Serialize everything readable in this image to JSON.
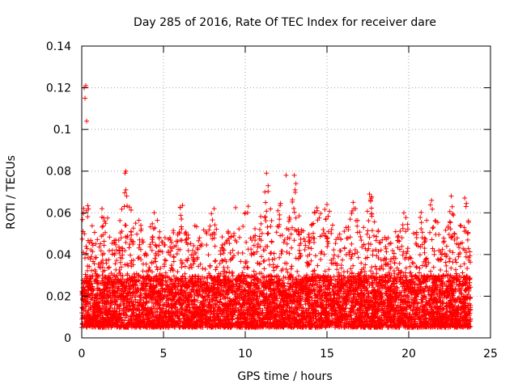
{
  "chart_data": {
    "type": "scatter",
    "title": "Day 285 of 2016, Rate Of TEC Index for receiver dare",
    "xlabel": "GPS time / hours",
    "ylabel": "ROTI / TECUs",
    "xlim": [
      0,
      25
    ],
    "ylim": [
      0,
      0.14
    ],
    "xticks": [
      0,
      5,
      10,
      15,
      20,
      25
    ],
    "xtick_labels": [
      "0",
      "5",
      "10",
      "15",
      "20",
      "25"
    ],
    "yticks": [
      0,
      0.02,
      0.04,
      0.06,
      0.08,
      0.1,
      0.12,
      0.14
    ],
    "ytick_labels": [
      "0",
      "0.02",
      "0.04",
      "0.06",
      "0.08",
      "0.1",
      "0.12",
      "0.14"
    ],
    "grid": true,
    "marker": "+",
    "series": [
      {
        "name": "ROTI",
        "color": "#ff0000",
        "x_range": [
          0,
          23.8
        ],
        "dense_band": [
          0.005,
          0.03
        ],
        "notable_points": [
          {
            "x": 0.15,
            "y": 0.12
          },
          {
            "x": 0.25,
            "y": 0.121
          },
          {
            "x": 0.2,
            "y": 0.115
          },
          {
            "x": 0.3,
            "y": 0.104
          },
          {
            "x": 0.3,
            "y": 0.061
          },
          {
            "x": 2.7,
            "y": 0.08
          },
          {
            "x": 2.65,
            "y": 0.079
          },
          {
            "x": 2.7,
            "y": 0.071
          },
          {
            "x": 2.75,
            "y": 0.068
          },
          {
            "x": 2.6,
            "y": 0.063
          },
          {
            "x": 11.3,
            "y": 0.079
          },
          {
            "x": 11.4,
            "y": 0.073
          },
          {
            "x": 11.2,
            "y": 0.07
          },
          {
            "x": 12.5,
            "y": 0.078
          },
          {
            "x": 13.0,
            "y": 0.078
          },
          {
            "x": 13.1,
            "y": 0.074
          },
          {
            "x": 13.05,
            "y": 0.071
          },
          {
            "x": 17.6,
            "y": 0.069
          },
          {
            "x": 17.7,
            "y": 0.067
          },
          {
            "x": 21.4,
            "y": 0.066
          },
          {
            "x": 22.6,
            "y": 0.068
          },
          {
            "x": 23.5,
            "y": 0.063
          },
          {
            "x": 15.0,
            "y": 0.064
          },
          {
            "x": 16.6,
            "y": 0.065
          },
          {
            "x": 19.7,
            "y": 0.06
          },
          {
            "x": 8.1,
            "y": 0.062
          },
          {
            "x": 10.0,
            "y": 0.06
          },
          {
            "x": 12.0,
            "y": 0.061
          },
          {
            "x": 14.4,
            "y": 0.061
          },
          {
            "x": 6.1,
            "y": 0.057
          },
          {
            "x": 1.4,
            "y": 0.056
          },
          {
            "x": 3.3,
            "y": 0.055
          }
        ]
      }
    ]
  }
}
